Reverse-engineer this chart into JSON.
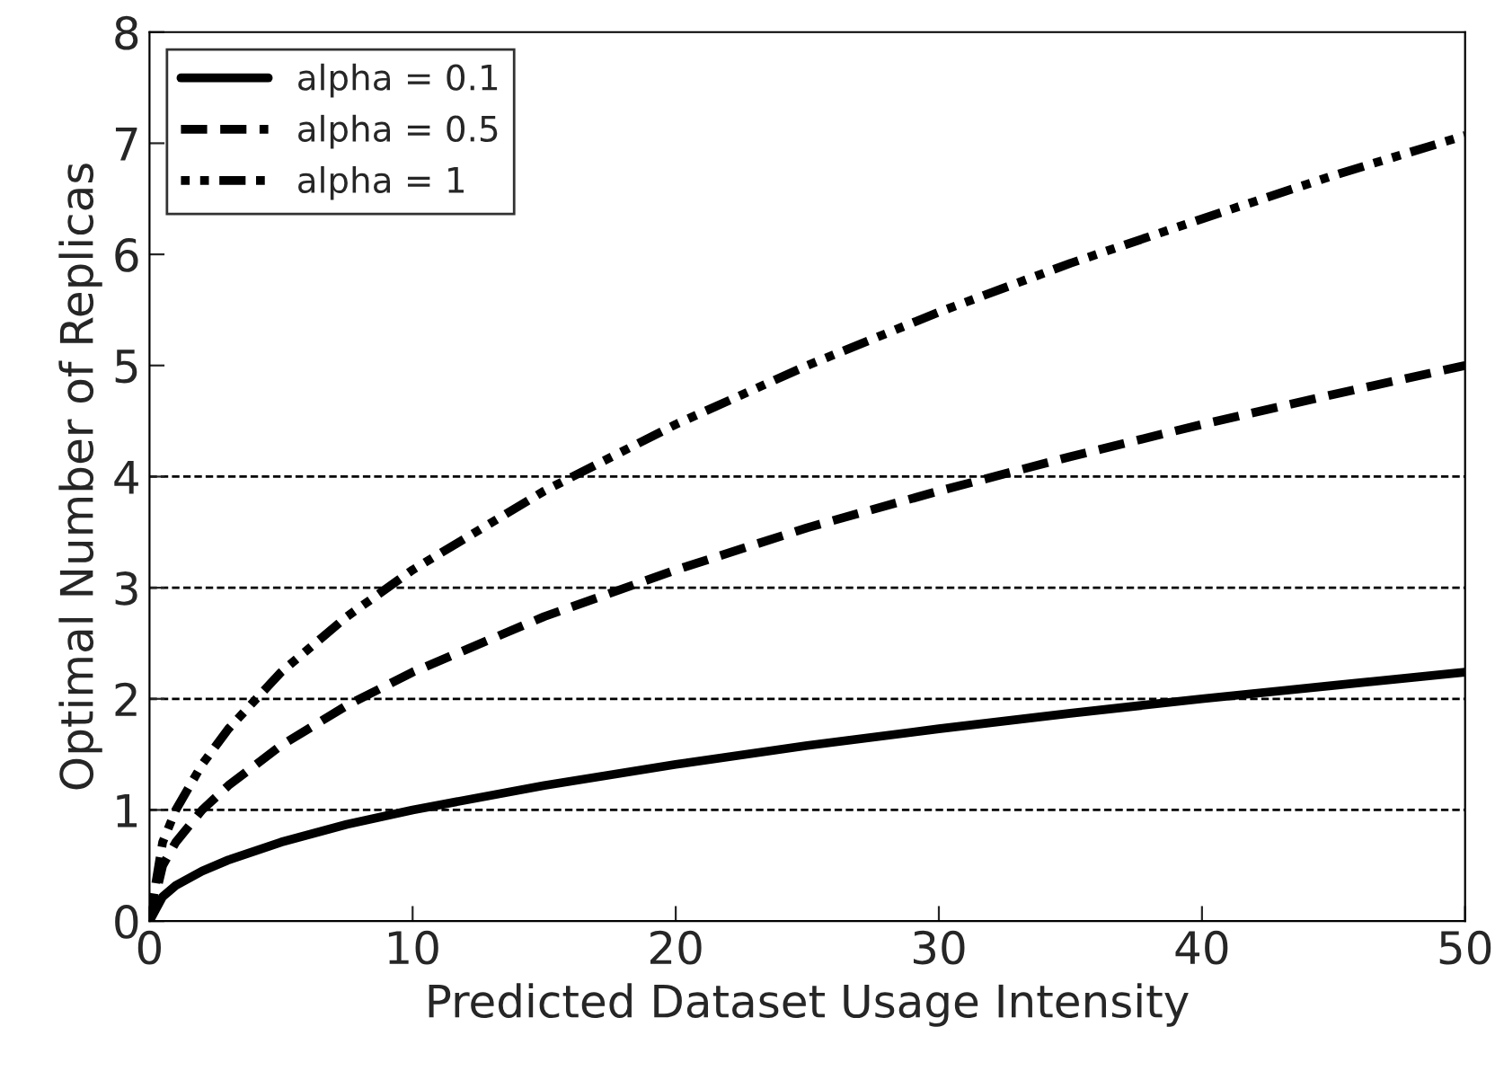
{
  "chart_data": {
    "type": "line",
    "xlabel": "Predicted Dataset Usage Intensity",
    "ylabel": "Optimal Number of Replicas",
    "x": [
      0,
      0.5,
      1,
      2,
      3,
      5,
      7.5,
      10,
      15,
      20,
      25,
      30,
      35,
      40,
      45,
      50
    ],
    "series": [
      {
        "name": "alpha = 0.1",
        "color": "#000000",
        "line_style": "solid",
        "values": [
          0,
          0.22,
          0.32,
          0.45,
          0.55,
          0.71,
          0.87,
          1.0,
          1.22,
          1.41,
          1.58,
          1.73,
          1.87,
          2.0,
          2.12,
          2.24
        ]
      },
      {
        "name": "alpha = 0.5",
        "color": "#000000",
        "line_style": "dashed",
        "values": [
          0,
          0.5,
          0.71,
          1.0,
          1.22,
          1.58,
          1.94,
          2.24,
          2.74,
          3.16,
          3.54,
          3.87,
          4.18,
          4.47,
          4.74,
          5.0
        ]
      },
      {
        "name": "alpha = 1",
        "color": "#000000",
        "line_style": "dotted",
        "values": [
          0,
          0.71,
          1.0,
          1.41,
          1.73,
          2.24,
          2.74,
          3.16,
          3.87,
          4.47,
          5.0,
          5.48,
          5.92,
          6.32,
          6.71,
          7.07
        ]
      }
    ],
    "xlim": [
      0,
      50
    ],
    "xticks": [
      0,
      10,
      20,
      30,
      40,
      50
    ],
    "ylim": [
      0,
      8
    ],
    "yticks": [
      0,
      1,
      2,
      3,
      4,
      5,
      6,
      7,
      8
    ],
    "ref_lines": [
      {
        "axis": "y",
        "value": 1,
        "color": "#000000",
        "line_style": "dashed"
      },
      {
        "axis": "y",
        "value": 2,
        "color": "#000000",
        "line_style": "dashed"
      },
      {
        "axis": "y",
        "value": 3,
        "color": "#000000",
        "line_style": "dashed"
      },
      {
        "axis": "y",
        "value": 4,
        "color": "#000000",
        "line_style": "dashed"
      }
    ],
    "legend": "top left",
    "grid": false,
    "marker": "none"
  }
}
